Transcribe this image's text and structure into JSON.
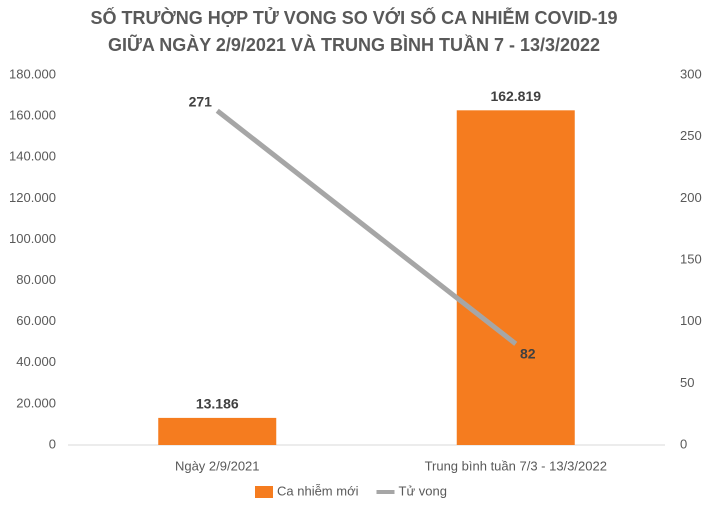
{
  "chart_data": {
    "type": "bar",
    "title": [
      "SỐ TRƯỜNG HỢP TỬ VONG SO VỚI SỐ CA NHIỄM COVID-19",
      "GIỮA NGÀY 2/9/2021 VÀ TRUNG BÌNH TUẦN 7 - 13/3/2022"
    ],
    "categories": [
      "Ngày 2/9/2021",
      "Trung bình tuần 7/3 - 13/3/2022"
    ],
    "series": [
      {
        "name": "Ca nhiễm mới",
        "type": "bar",
        "color": "#f57c1f",
        "values": [
          13186,
          162819
        ],
        "value_labels": [
          "13.186",
          "162.819"
        ]
      },
      {
        "name": "Tử vong",
        "type": "line",
        "axis": "y2",
        "color": "#a6a6a6",
        "values": [
          271,
          82
        ]
      }
    ],
    "ylim": [
      0,
      180000
    ],
    "yticks": [
      0,
      {
        "value": 20000,
        "label": "20.000"
      },
      {
        "value": 40000,
        "label": "40.000"
      },
      {
        "value": 60000,
        "label": "60.000"
      },
      {
        "value": 80000,
        "label": "80.000"
      },
      {
        "value": 100000,
        "label": "100.000"
      },
      {
        "value": 120000,
        "label": "120.000"
      },
      {
        "value": 140000,
        "label": "140.000"
      },
      {
        "value": 160000,
        "label": "160.000"
      },
      {
        "value": 180000,
        "label": "180.000"
      }
    ],
    "y2lim": [
      0,
      300
    ],
    "y2ticks": [
      0,
      50,
      100,
      150,
      200,
      250,
      300
    ],
    "legend": "bottom"
  }
}
